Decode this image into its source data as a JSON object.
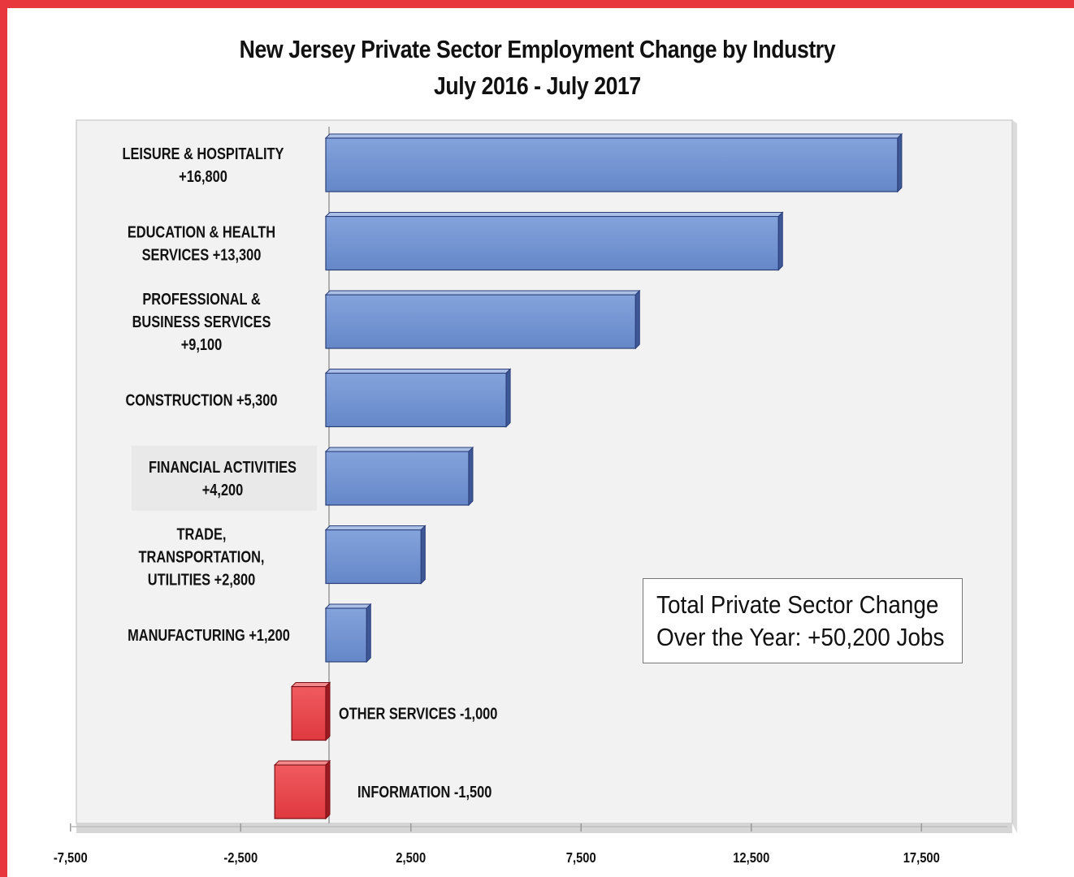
{
  "chart_data": {
    "type": "bar",
    "orientation": "horizontal",
    "title": "New Jersey Private Sector Employment Change by Industry",
    "subtitle": "July 2016 - July 2017",
    "categories": [
      "LEISURE & HOSPITALITY +16,800",
      "EDUCATION & HEALTH SERVICES +13,300",
      "PROFESSIONAL & BUSINESS SERVICES +9,100",
      "CONSTRUCTION +5,300",
      "FINANCIAL ACTIVITIES +4,200",
      "TRADE, TRANSPORTATION, UTILITIES +2,800",
      "MANUFACTURING +1,200",
      "OTHER SERVICES -1,000",
      "INFORMATION -1,500"
    ],
    "label_lines": [
      [
        "LEISURE & HOSPITALITY",
        "+16,800"
      ],
      [
        "EDUCATION & HEALTH",
        "SERVICES  +13,300"
      ],
      [
        "PROFESSIONAL &",
        "BUSINESS SERVICES",
        "+9,100"
      ],
      [
        "CONSTRUCTION +5,300"
      ],
      [
        "FINANCIAL ACTIVITIES",
        "+4,200"
      ],
      [
        "TRADE,",
        "TRANSPORTATION,",
        "UTILITIES +2,800"
      ],
      [
        "MANUFACTURING +1,200"
      ],
      [
        "OTHER SERVICES -1,000"
      ],
      [
        "INFORMATION -1,500"
      ]
    ],
    "values": [
      16800,
      13300,
      9100,
      5300,
      4200,
      2800,
      1200,
      -1000,
      -1500
    ],
    "xlim": [
      -7500,
      20000
    ],
    "xticks": [
      -7500,
      -2500,
      2500,
      7500,
      12500,
      17500
    ],
    "xtick_labels": [
      "-7,500",
      "-2,500",
      "2,500",
      "7,500",
      "12,500",
      "17,500"
    ],
    "colors": {
      "positive": "#7092d0",
      "negative": "#e8474d",
      "frame": "#e8383d"
    },
    "annotation": [
      "Total Private Sector Change",
      "Over the Year: +50,200 Jobs"
    ]
  }
}
